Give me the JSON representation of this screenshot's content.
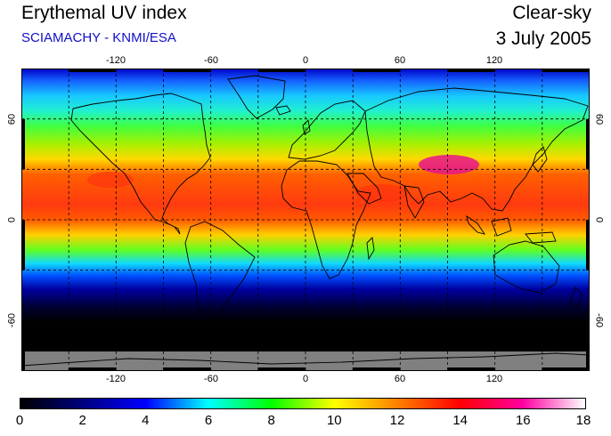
{
  "header": {
    "title": "Erythemal UV index",
    "subtitle": "SCIAMACHY - KNMI/ESA",
    "sky_condition": "Clear-sky",
    "date": "3 July 2005"
  },
  "map": {
    "projection": "equirectangular",
    "lon_range": [
      -180,
      180
    ],
    "lat_range": [
      -90,
      90
    ],
    "grid": true,
    "lon_ticks": [
      "-120",
      "-60",
      "0",
      "60",
      "120"
    ],
    "lat_ticks": [
      "60",
      "0",
      "-60"
    ],
    "no_data_color": "#808080",
    "variable": "erythemal UV index"
  },
  "colorbar": {
    "min": 0,
    "max": 18,
    "ticks": [
      "0",
      "2",
      "4",
      "6",
      "8",
      "10",
      "12",
      "14",
      "16",
      "18"
    ],
    "colors": [
      "#000000",
      "#000080",
      "#0000ff",
      "#00ffff",
      "#00ff00",
      "#ffff00",
      "#ff8000",
      "#ff0000",
      "#ff00a0",
      "#ffffff"
    ]
  }
}
